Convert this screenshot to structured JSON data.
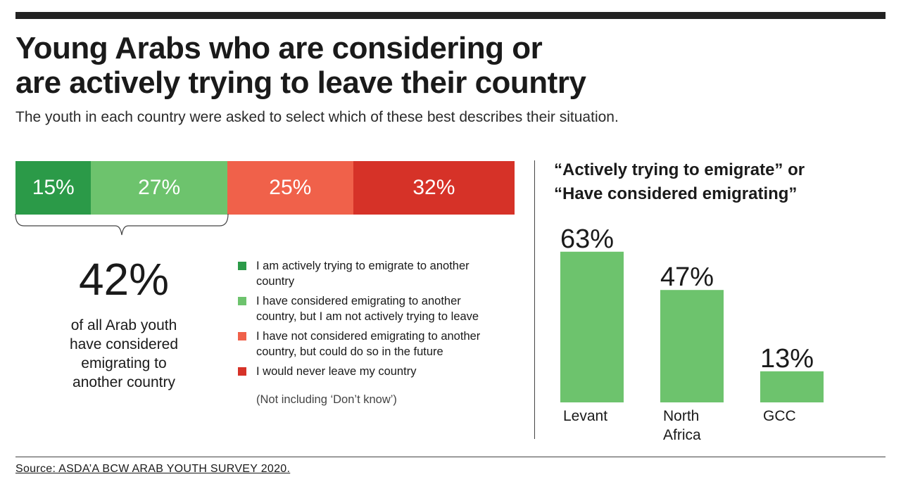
{
  "title_line1": "Young Arabs who are considering or",
  "title_line2": "are actively trying to leave their country",
  "subtitle": "The youth in each country were asked to select which of these best describes their situation.",
  "stacked": {
    "segments": [
      {
        "label": "15%",
        "value": 15,
        "color": "#2b9a48"
      },
      {
        "label": "27%",
        "value": 27,
        "color": "#6dc36d"
      },
      {
        "label": "25%",
        "value": 25,
        "color": "#f0614a"
      },
      {
        "label": "32%",
        "value": 32,
        "color": "#d63228"
      }
    ]
  },
  "summary": {
    "percent": "42%",
    "line1": "of all Arab youth",
    "line2": "have considered",
    "line3": "emigrating to",
    "line4": "another country"
  },
  "legend": [
    {
      "line1": "I am actively trying to emigrate to another",
      "line2": "country",
      "color": "#2b9a48"
    },
    {
      "line1": "I have considered emigrating to another",
      "line2": "country, but I am not actively trying to leave",
      "color": "#6dc36d"
    },
    {
      "line1": "I have not considered emigrating to another",
      "line2": "country, but could do so in the future",
      "color": "#f0614a"
    },
    {
      "line1": "I would never leave my country",
      "line2": "",
      "color": "#d63228"
    }
  ],
  "note": "(Not including ‘Don’t know’)",
  "region": {
    "title_line1": "“Actively trying to emigrate” or",
    "title_line2": "“Have considered emigrating”"
  },
  "chart_data": {
    "type": "bar",
    "categories": [
      [
        "Levant"
      ],
      [
        "North",
        "Africa"
      ],
      [
        "GCC"
      ]
    ],
    "values": [
      63,
      47,
      13
    ],
    "value_labels": [
      "63%",
      "47%",
      "13%"
    ],
    "color": "#6dc36d",
    "ylim": [
      0,
      100
    ],
    "grid": false
  },
  "source": "Source: ASDA’A BCW ARAB YOUTH SURVEY 2020."
}
